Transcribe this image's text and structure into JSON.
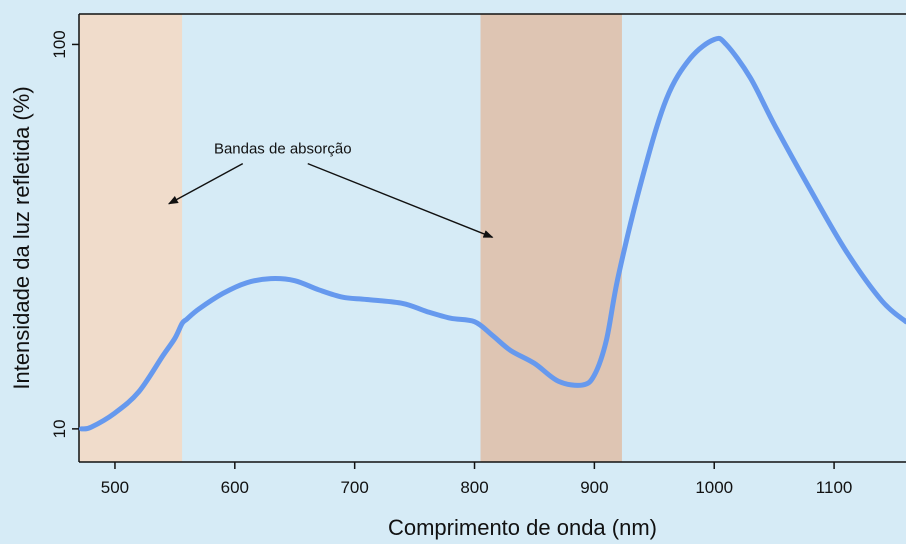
{
  "chart_data": {
    "type": "line",
    "xlabel": "Comprimento de onda (nm)",
    "ylabel": "Intensidade da luz refletida (%)",
    "y_scale": "log",
    "xlim": [
      470,
      1160
    ],
    "ylim": [
      8.2,
      120
    ],
    "x_ticks": [
      500,
      600,
      700,
      800,
      900,
      1000,
      1100
    ],
    "y_ticks": [
      10,
      100
    ],
    "bands": [
      {
        "x_start": 470,
        "x_end": 556,
        "color": "#f0dccb"
      },
      {
        "x_start": 805,
        "x_end": 923,
        "color": "#dec5b3"
      }
    ],
    "annotation": {
      "text": "Bandas de absorção",
      "x": 640,
      "y": 52,
      "arrows_to": [
        {
          "x": 545,
          "y": 38.5
        },
        {
          "x": 815,
          "y": 31.5
        }
      ]
    },
    "series": [
      {
        "color": "#6699ee",
        "points": [
          [
            472,
            10.0
          ],
          [
            480,
            10.1
          ],
          [
            500,
            11.0
          ],
          [
            520,
            12.5
          ],
          [
            540,
            15.5
          ],
          [
            550,
            17.2
          ],
          [
            556,
            18.8
          ],
          [
            560,
            19.3
          ],
          [
            570,
            20.5
          ],
          [
            590,
            22.5
          ],
          [
            610,
            24.0
          ],
          [
            630,
            24.6
          ],
          [
            650,
            24.3
          ],
          [
            670,
            23.0
          ],
          [
            690,
            22.0
          ],
          [
            710,
            21.7
          ],
          [
            740,
            21.2
          ],
          [
            760,
            20.2
          ],
          [
            780,
            19.4
          ],
          [
            800,
            19.0
          ],
          [
            815,
            17.5
          ],
          [
            830,
            16.0
          ],
          [
            850,
            14.8
          ],
          [
            870,
            13.3
          ],
          [
            890,
            13.0
          ],
          [
            900,
            13.8
          ],
          [
            910,
            17.0
          ],
          [
            920,
            25.0
          ],
          [
            940,
            45.0
          ],
          [
            960,
            72.0
          ],
          [
            980,
            92.0
          ],
          [
            1000,
            103.0
          ],
          [
            1010,
            100.0
          ],
          [
            1030,
            82.0
          ],
          [
            1050,
            62.0
          ],
          [
            1080,
            42.0
          ],
          [
            1110,
            29.0
          ],
          [
            1140,
            21.5
          ],
          [
            1160,
            19.0
          ]
        ]
      }
    ]
  }
}
